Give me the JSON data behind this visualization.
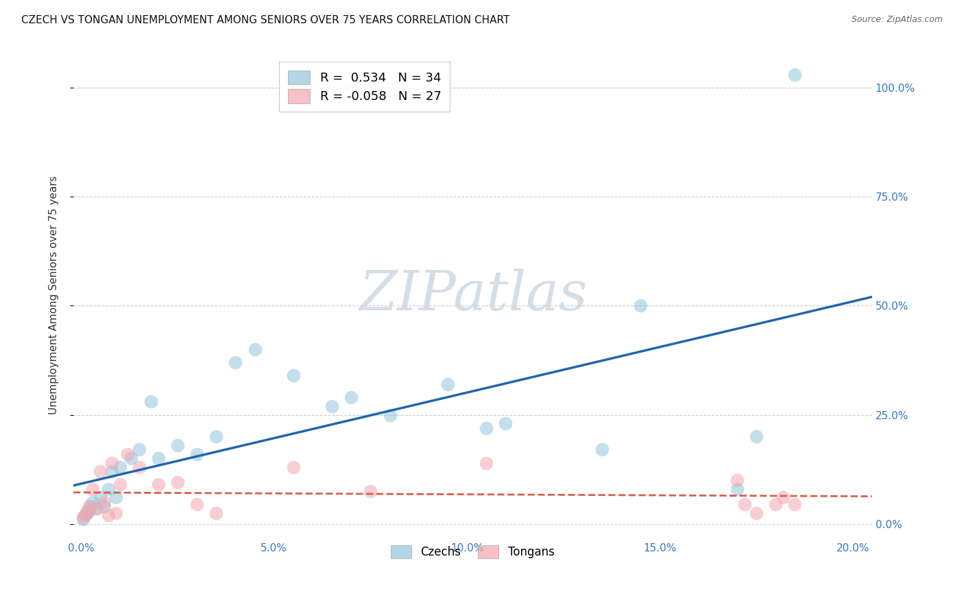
{
  "title": "CZECH VS TONGAN UNEMPLOYMENT AMONG SENIORS OVER 75 YEARS CORRELATION CHART",
  "source": "Source: ZipAtlas.com",
  "ylabel": "Unemployment Among Seniors over 75 years",
  "xlim": [
    -0.2,
    20.5
  ],
  "ylim": [
    -3.0,
    108.0
  ],
  "czech_R": 0.534,
  "czech_N": 34,
  "tongan_R": -0.058,
  "tongan_N": 27,
  "czech_color": "#92c5de",
  "tongan_color": "#f4a6b0",
  "czech_line_color": "#2166ac",
  "tongan_line_color": "#d6604d",
  "watermark_color": "#cdd9e5",
  "czech_x": [
    0.05,
    0.1,
    0.15,
    0.2,
    0.25,
    0.3,
    0.4,
    0.5,
    0.6,
    0.7,
    0.8,
    0.9,
    1.0,
    1.3,
    1.5,
    1.8,
    2.0,
    2.5,
    3.0,
    3.5,
    4.0,
    4.5,
    5.5,
    6.5,
    7.0,
    8.0,
    9.5,
    10.5,
    11.0,
    13.5,
    14.5,
    17.0,
    17.5,
    18.5
  ],
  "czech_y": [
    1.0,
    2.0,
    2.5,
    3.0,
    4.0,
    5.0,
    3.5,
    6.0,
    4.0,
    8.0,
    12.0,
    6.0,
    13.0,
    15.0,
    17.0,
    28.0,
    15.0,
    18.0,
    16.0,
    20.0,
    37.0,
    40.0,
    34.0,
    27.0,
    29.0,
    25.0,
    32.0,
    22.0,
    23.0,
    17.0,
    50.0,
    8.0,
    20.0,
    103.0
  ],
  "tongan_x": [
    0.05,
    0.1,
    0.15,
    0.2,
    0.3,
    0.4,
    0.5,
    0.6,
    0.7,
    0.8,
    0.9,
    1.0,
    1.2,
    1.5,
    2.0,
    2.5,
    3.0,
    3.5,
    5.5,
    7.5,
    10.5,
    17.0,
    17.2,
    17.5,
    18.0,
    18.2,
    18.5
  ],
  "tongan_y": [
    1.5,
    2.0,
    3.0,
    4.0,
    8.0,
    3.5,
    12.0,
    5.0,
    2.0,
    14.0,
    2.5,
    9.0,
    16.0,
    13.0,
    9.0,
    9.5,
    4.5,
    2.5,
    13.0,
    7.5,
    14.0,
    10.0,
    4.5,
    2.5,
    4.5,
    6.0,
    4.5
  ],
  "yticks": [
    0,
    25,
    50,
    75,
    100
  ],
  "xticks": [
    0,
    5,
    10,
    15,
    20
  ]
}
